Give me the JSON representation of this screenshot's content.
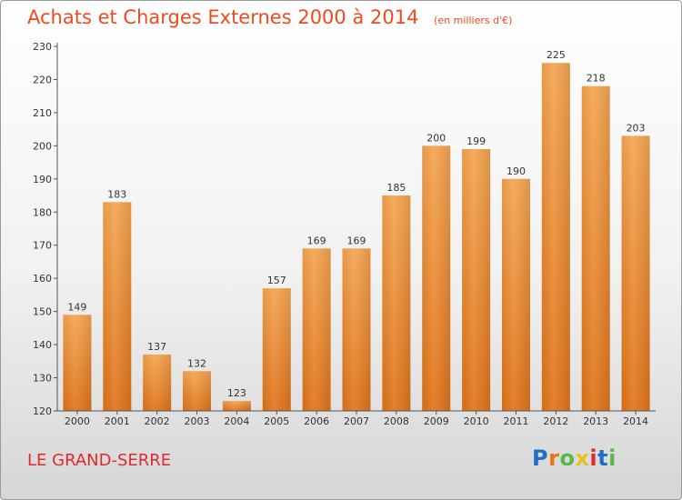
{
  "chart_data": {
    "type": "bar",
    "title": "Achats et Charges Externes 2000 à 2014",
    "subtitle": "(en milliers d'€)",
    "categories": [
      "2000",
      "2001",
      "2002",
      "2003",
      "2004",
      "2005",
      "2006",
      "2007",
      "2008",
      "2009",
      "2010",
      "2011",
      "2012",
      "2013",
      "2014"
    ],
    "values": [
      149,
      183,
      137,
      132,
      123,
      157,
      169,
      169,
      185,
      200,
      199,
      190,
      225,
      218,
      203
    ],
    "ylim": [
      120,
      230
    ],
    "yticks": [
      120,
      130,
      140,
      150,
      160,
      170,
      180,
      190,
      200,
      210,
      220,
      230
    ],
    "grid": false,
    "bar_color": "#f28a2e"
  },
  "place_label": "LE GRAND-SERRE",
  "logo": {
    "letters": [
      "P",
      "r",
      "o",
      "x",
      "i",
      "t",
      "i"
    ],
    "colors": [
      "#1f6fc5",
      "#e8731a",
      "#57b947",
      "#e8c21a",
      "#e2292b",
      "#1f6fc5",
      "#57b947"
    ]
  }
}
